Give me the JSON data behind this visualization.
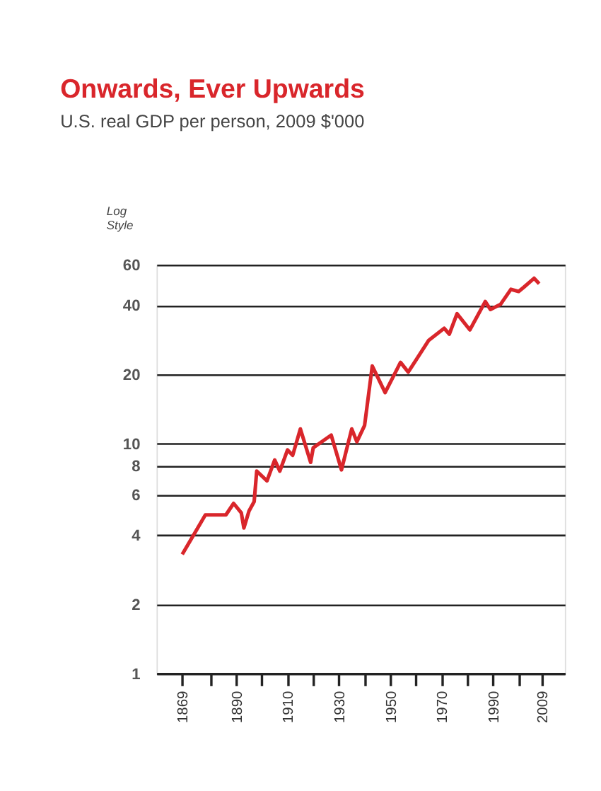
{
  "chart_data": {
    "type": "line",
    "title": "Onwards, Ever Upwards",
    "subtitle": "U.S. real GDP per person, 2009 $'000",
    "ylabel": "Log Style",
    "series": [
      {
        "color": "#d9262b",
        "x": [
          1869,
          1878,
          1886,
          1889,
          1892,
          1893,
          1895,
          1897,
          1898,
          1902,
          1905,
          1907,
          1910,
          1912,
          1915,
          1919,
          1920,
          1927,
          1931,
          1935,
          1937,
          1940,
          1943,
          1948,
          1954,
          1957,
          1965,
          1971,
          1973,
          1976,
          1981,
          1987,
          1989,
          1993,
          1997,
          2000,
          2002,
          2006,
          2008
        ],
        "values": [
          3.3,
          4.9,
          4.9,
          5.5,
          5.0,
          4.3,
          5.1,
          5.6,
          7.6,
          6.9,
          8.5,
          7.6,
          9.4,
          8.9,
          11.6,
          8.3,
          9.6,
          10.9,
          7.7,
          11.6,
          10.2,
          12.0,
          21.8,
          16.7,
          22.6,
          20.5,
          28.2,
          31.8,
          30,
          36.8,
          31.3,
          41.6,
          38.4,
          40.5,
          47,
          46,
          48,
          52.5,
          49.7
        ]
      }
    ],
    "xlim": [
      1859,
      2018
    ],
    "xticks": [
      1869,
      {
        "value": 1880,
        "label": null
      },
      1890,
      {
        "value": 1900,
        "label": null
      },
      1910,
      {
        "value": 1920,
        "label": null
      },
      1930,
      {
        "value": 1940,
        "label": null
      },
      1950,
      {
        "value": 1960,
        "label": null
      },
      1970,
      {
        "value": 1980,
        "label": null
      },
      1990,
      {
        "value": 2000,
        "label": null
      },
      2009
    ],
    "ylim": [
      1,
      60
    ],
    "yticks": [
      1,
      2,
      4,
      6,
      8,
      10,
      20,
      40,
      60
    ],
    "log": "y",
    "grid": "y",
    "line_style": "solid",
    "marker": "none"
  }
}
